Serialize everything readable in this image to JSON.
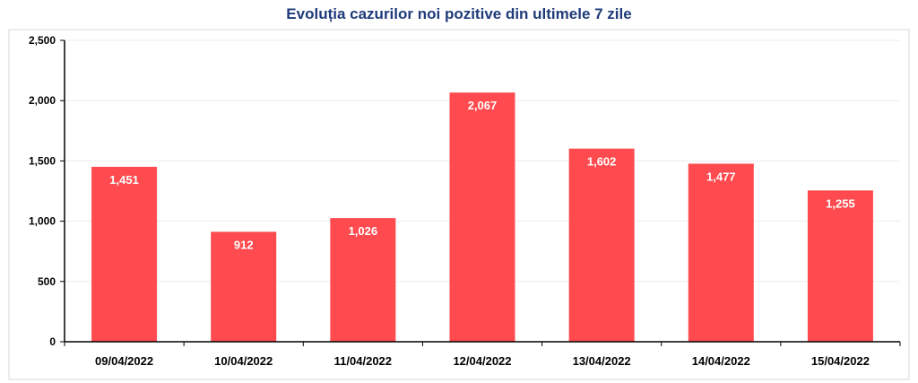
{
  "chart_data": {
    "type": "bar",
    "title": "Evoluția cazurilor noi pozitive din ultimele 7 zile",
    "categories": [
      "09/04/2022",
      "10/04/2022",
      "11/04/2022",
      "12/04/2022",
      "13/04/2022",
      "14/04/2022",
      "15/04/2022"
    ],
    "values": [
      1451,
      912,
      1026,
      2067,
      1602,
      1477,
      1255
    ],
    "value_labels": [
      "1,451",
      "912",
      "1,026",
      "2,067",
      "1,602",
      "1,477",
      "1,255"
    ],
    "ylim": [
      0,
      2500
    ],
    "yticks": [
      0,
      500,
      1000,
      1500,
      2000,
      2500
    ],
    "ytick_labels": [
      "0",
      "500",
      "1,000",
      "1,500",
      "2,000",
      "2,500"
    ],
    "grid": true,
    "legend": "none",
    "bar_color": "#ff4b4f",
    "xlabel": "",
    "ylabel": ""
  }
}
